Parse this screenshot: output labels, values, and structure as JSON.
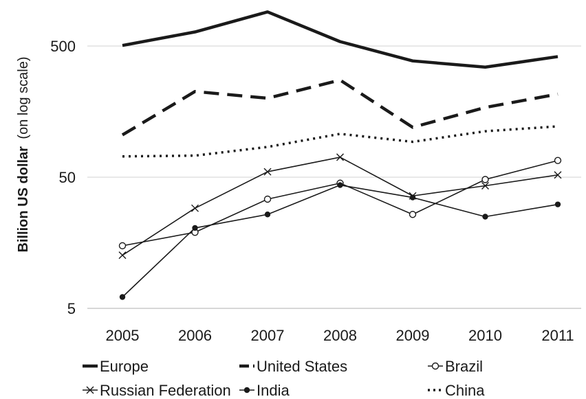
{
  "chart_data": {
    "type": "line",
    "title": "",
    "xlabel": "",
    "ylabel_bold": "Billion US dollar",
    "ylabel_normal": "(on log scale)",
    "y_scale": "log",
    "ylim": [
      5,
      1000
    ],
    "y_ticks": [
      5,
      50,
      500
    ],
    "y_tick_labels": [
      "5",
      "50",
      "500"
    ],
    "grid": "horizontal",
    "legend_position": "bottom",
    "categories": [
      "2005",
      "2006",
      "2007",
      "2008",
      "2009",
      "2010",
      "2011"
    ],
    "series": [
      {
        "name": "Europe",
        "style": "thick-solid",
        "color": "#1a1a1a",
        "values": [
          505,
          640,
          910,
          540,
          385,
          345,
          415
        ]
      },
      {
        "name": "United States",
        "style": "dashed",
        "color": "#1a1a1a",
        "values": [
          105,
          225,
          200,
          275,
          120,
          170,
          215
        ]
      },
      {
        "name": "Brazil",
        "style": "open-circle",
        "color": "#1a1a1a",
        "values": [
          15,
          19,
          34,
          45,
          26,
          48,
          67
        ]
      },
      {
        "name": "Russian Federation",
        "style": "x-marker",
        "color": "#1a1a1a",
        "values": [
          12.7,
          29,
          55,
          71,
          36,
          43,
          52
        ]
      },
      {
        "name": "India",
        "style": "filled-dot",
        "color": "#1a1a1a",
        "values": [
          6.1,
          20.5,
          26,
          43.5,
          35,
          25,
          31
        ]
      },
      {
        "name": "China",
        "style": "dotted",
        "color": "#1a1a1a",
        "values": [
          72,
          73,
          85,
          107,
          93,
          112,
          122
        ]
      }
    ]
  }
}
